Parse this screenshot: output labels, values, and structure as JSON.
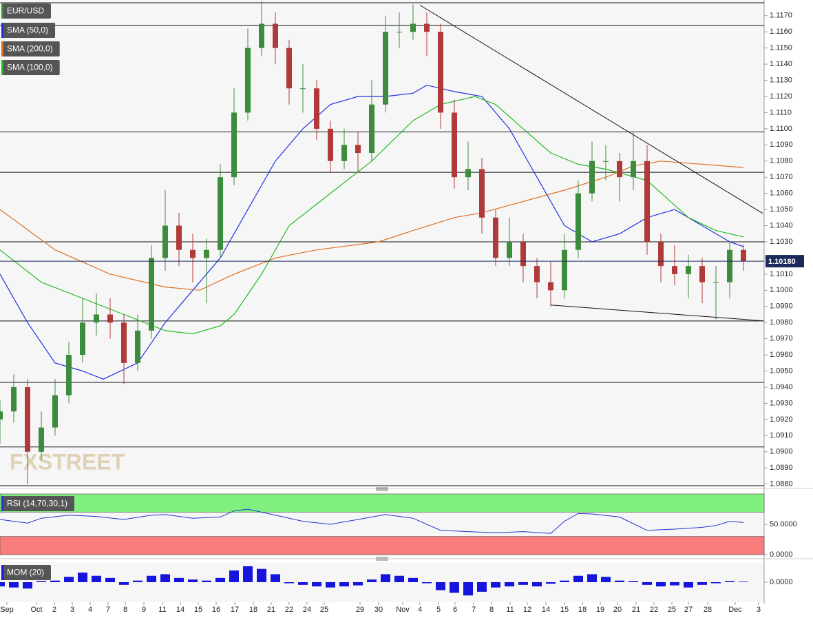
{
  "chart_data": [
    {
      "type": "candlestick",
      "name": "EUR/USD",
      "up_color": "#3d8b3d",
      "down_color": "#b03a3a",
      "x": [
        0,
        2,
        4,
        6,
        8,
        10,
        12,
        14,
        16,
        18,
        20,
        22,
        24,
        26,
        28,
        30,
        32,
        34,
        36,
        38,
        40,
        42,
        44,
        46,
        48,
        50,
        52,
        54,
        56,
        58,
        60,
        62,
        64,
        66,
        68,
        70,
        72,
        74,
        76,
        78,
        80,
        82,
        84,
        86,
        88,
        90,
        92,
        94,
        96,
        98,
        100,
        102,
        104,
        106,
        108
      ],
      "open": [
        1.092,
        1.0925,
        1.094,
        1.09,
        1.0915,
        1.0935,
        1.096,
        1.098,
        1.0985,
        1.098,
        1.0955,
        1.0975,
        1.102,
        1.104,
        1.1025,
        1.102,
        1.1025,
        1.107,
        1.111,
        1.115,
        1.1165,
        1.115,
        1.1125,
        1.1125,
        1.11,
        1.108,
        1.109,
        1.1085,
        1.1115,
        1.116,
        1.116,
        1.1165,
        1.116,
        1.111,
        1.107,
        1.1075,
        1.1045,
        1.102,
        1.103,
        1.1015,
        1.1005,
        1.1,
        1.1025,
        1.106,
        1.108,
        1.108,
        1.107,
        1.108,
        1.103,
        1.1015,
        1.101,
        1.1015,
        1.1005,
        1.1005,
        1.1025
      ],
      "high": [
        1.0932,
        1.0948,
        1.0945,
        1.0925,
        1.0945,
        1.0968,
        1.0995,
        1.0998,
        1.0995,
        1.0985,
        1.0985,
        1.1028,
        1.1062,
        1.1048,
        1.1035,
        1.1032,
        1.1078,
        1.1125,
        1.1162,
        1.1179,
        1.1172,
        1.1155,
        1.114,
        1.113,
        1.1105,
        1.11,
        1.1098,
        1.113,
        1.117,
        1.1172,
        1.1177,
        1.1172,
        1.1165,
        1.1118,
        1.1092,
        1.1082,
        1.105,
        1.1045,
        1.1035,
        1.102,
        1.1018,
        1.1035,
        1.1068,
        1.1092,
        1.109,
        1.1085,
        1.1098,
        1.109,
        1.1035,
        1.1028,
        1.1022,
        1.102,
        1.1015,
        1.103,
        1.1028
      ],
      "low": [
        1.0905,
        1.0918,
        1.088,
        1.0895,
        1.091,
        1.093,
        1.0955,
        1.0972,
        1.097,
        1.0942,
        1.095,
        1.097,
        1.1012,
        1.1015,
        1.1005,
        1.0992,
        1.102,
        1.1065,
        1.1105,
        1.1145,
        1.114,
        1.1115,
        1.111,
        1.1093,
        1.1073,
        1.1075,
        1.1073,
        1.108,
        1.111,
        1.115,
        1.1155,
        1.1145,
        1.11,
        1.1063,
        1.1062,
        1.1035,
        1.1015,
        1.1015,
        1.1005,
        1.0995,
        1.099,
        1.0995,
        1.102,
        1.1055,
        1.1068,
        1.1055,
        1.1062,
        1.1022,
        1.1005,
        1.1003,
        1.0995,
        1.0992,
        1.0982,
        1.0995,
        1.1012
      ],
      "close": [
        1.0925,
        1.094,
        1.09,
        1.0915,
        1.0935,
        1.096,
        1.098,
        1.0985,
        1.098,
        1.0955,
        1.0975,
        1.102,
        1.104,
        1.1025,
        1.102,
        1.1025,
        1.107,
        1.111,
        1.115,
        1.1165,
        1.115,
        1.1125,
        1.1125,
        1.11,
        1.108,
        1.109,
        1.1085,
        1.1115,
        1.116,
        1.116,
        1.1165,
        1.116,
        1.111,
        1.107,
        1.1075,
        1.1045,
        1.102,
        1.103,
        1.1015,
        1.1005,
        1.1,
        1.1025,
        1.106,
        1.108,
        1.108,
        1.107,
        1.108,
        1.103,
        1.1015,
        1.101,
        1.1015,
        1.1005,
        1.1005,
        1.1025,
        1.1018
      ],
      "series": [
        {
          "name": "SMA (50,0)",
          "color": "#2030e0",
          "x": [
            0,
            4,
            8,
            12,
            15,
            20,
            24,
            28,
            32,
            36,
            40,
            44,
            48,
            52,
            56,
            60,
            62,
            66,
            70,
            74,
            78,
            82,
            86,
            90,
            94,
            98,
            102,
            106,
            108
          ],
          "values": [
            1.101,
            1.098,
            1.0955,
            1.095,
            1.0945,
            1.0955,
            1.098,
            1.1,
            1.102,
            1.105,
            1.108,
            1.11,
            1.1115,
            1.112,
            1.112,
            1.1122,
            1.1127,
            1.1123,
            1.112,
            1.11,
            1.107,
            1.104,
            1.103,
            1.1035,
            1.1045,
            1.105,
            1.104,
            1.103,
            1.1027
          ]
        },
        {
          "name": "SMA (200,0)",
          "color": "#e07020",
          "x": [
            0,
            8,
            16,
            24,
            29,
            34,
            40,
            46,
            55,
            60,
            66,
            70,
            76,
            82,
            88,
            92,
            96,
            102,
            108
          ],
          "values": [
            1.105,
            1.1025,
            1.101,
            1.1002,
            1.1,
            1.101,
            1.102,
            1.1025,
            1.103,
            1.1037,
            1.1045,
            1.1048,
            1.1055,
            1.1062,
            1.107,
            1.1077,
            1.108,
            1.1078,
            1.1076
          ]
        },
        {
          "name": "SMA (100,0)",
          "color": "#22bb22",
          "x": [
            0,
            6,
            12,
            18,
            24,
            28,
            32,
            34,
            38,
            42,
            48,
            54,
            60,
            64,
            69,
            72,
            76,
            80,
            84,
            88,
            94,
            100,
            104,
            108
          ],
          "values": [
            1.1025,
            1.1005,
            1.0995,
            1.0985,
            1.0975,
            1.0973,
            1.0978,
            1.0985,
            1.101,
            1.104,
            1.106,
            1.108,
            1.1105,
            1.1115,
            1.112,
            1.1115,
            1.11,
            1.1085,
            1.1078,
            1.1075,
            1.1068,
            1.1045,
            1.1037,
            1.1033
          ]
        }
      ],
      "hlines": [
        1.1178,
        1.1164,
        1.1098,
        1.1073,
        1.103,
        1.0981,
        1.0943,
        1.0903,
        1.0879
      ],
      "trendlines": [
        {
          "x": [
            61,
            110.8
          ],
          "values": [
            1.11765,
            1.10476
          ]
        },
        {
          "x": [
            80,
            110.8
          ],
          "values": [
            1.09909,
            1.09811
          ]
        }
      ],
      "last_price": 1.1018,
      "last_price_label": "1.10180",
      "watermark": "FXSTREET",
      "xlim": [
        0,
        111
      ],
      "ylim": [
        1.0879,
        1.1178
      ],
      "yticks": [
        {
          "value": 1.088,
          "label": "1.0880"
        },
        {
          "value": 1.089,
          "label": "1.0890"
        },
        {
          "value": 1.09,
          "label": "1.0900"
        },
        {
          "value": 1.091,
          "label": "1.0910"
        },
        {
          "value": 1.092,
          "label": "1.0920"
        },
        {
          "value": 1.093,
          "label": "1.0930"
        },
        {
          "value": 1.094,
          "label": "1.0940"
        },
        {
          "value": 1.095,
          "label": "1.0950"
        },
        {
          "value": 1.096,
          "label": "1.0960"
        },
        {
          "value": 1.097,
          "label": "1.0970"
        },
        {
          "value": 1.098,
          "label": "1.0980"
        },
        {
          "value": 1.099,
          "label": "1.0990"
        },
        {
          "value": 1.1,
          "label": "1.1000"
        },
        {
          "value": 1.101,
          "label": "1.1010"
        },
        {
          "value": 1.102,
          "label": "1.1020"
        },
        {
          "value": 1.103,
          "label": "1.1030"
        },
        {
          "value": 1.104,
          "label": "1.1040"
        },
        {
          "value": 1.105,
          "label": "1.1050"
        },
        {
          "value": 1.106,
          "label": "1.1060"
        },
        {
          "value": 1.107,
          "label": "1.1070"
        },
        {
          "value": 1.108,
          "label": "1.1080"
        },
        {
          "value": 1.109,
          "label": "1.1090"
        },
        {
          "value": 1.11,
          "label": "1.1100"
        },
        {
          "value": 1.111,
          "label": "1.1110"
        },
        {
          "value": 1.112,
          "label": "1.1120"
        },
        {
          "value": 1.113,
          "label": "1.1130"
        },
        {
          "value": 1.114,
          "label": "1.1140"
        },
        {
          "value": 1.115,
          "label": "1.1150"
        },
        {
          "value": 1.116,
          "label": "1.1160"
        },
        {
          "value": 1.117,
          "label": "1.1170"
        }
      ]
    },
    {
      "type": "line",
      "name": "RSI (14,70,30,1)",
      "color": "#2233cc",
      "x": [
        0,
        4,
        6,
        10,
        14,
        18,
        22,
        24,
        28,
        32,
        34,
        36,
        40,
        44,
        48,
        52,
        56,
        60,
        64,
        68,
        72,
        76,
        80,
        82,
        84,
        86,
        90,
        94,
        98,
        102,
        104,
        106,
        108
      ],
      "values": [
        58,
        52,
        60,
        65,
        63,
        58,
        65,
        66,
        60,
        62,
        72,
        75,
        65,
        55,
        50,
        58,
        66,
        60,
        40,
        38,
        36,
        38,
        35,
        55,
        68,
        67,
        62,
        40,
        42,
        45,
        48,
        55,
        53
      ],
      "zones": [
        {
          "from": 70,
          "to": 100,
          "color": "#80f080"
        },
        {
          "from": 0,
          "to": 30,
          "color": "#f87c7c"
        }
      ],
      "xlim": [
        0,
        111
      ],
      "ylim": [
        0,
        100
      ],
      "yticks": [
        {
          "value": 50,
          "label": "50.0000"
        },
        {
          "value": 0,
          "label": "0.0000"
        }
      ]
    },
    {
      "type": "bar",
      "name": "MOM (20)",
      "color": "#1515dd",
      "x": [
        0,
        2,
        4,
        6,
        8,
        10,
        12,
        14,
        16,
        18,
        20,
        22,
        24,
        26,
        28,
        30,
        32,
        34,
        36,
        38,
        40,
        42,
        44,
        46,
        48,
        50,
        52,
        54,
        56,
        58,
        60,
        62,
        64,
        66,
        68,
        70,
        72,
        74,
        76,
        78,
        80,
        82,
        84,
        86,
        88,
        90,
        92,
        94,
        96,
        98,
        100,
        102,
        104,
        106,
        108
      ],
      "values": [
        -0.0008,
        -0.001,
        -0.0012,
        0.0002,
        0.0003,
        0.001,
        0.0018,
        0.0012,
        0.0008,
        -0.0005,
        0.0003,
        0.0012,
        0.0015,
        0.0008,
        0.0005,
        0.0003,
        0.0008,
        0.0022,
        0.003,
        0.0025,
        0.0015,
        -0.0002,
        -0.0005,
        -0.0008,
        -0.001,
        -0.0008,
        -0.0006,
        0.0005,
        0.0015,
        0.0012,
        0.0008,
        -0.0002,
        -0.0015,
        -0.002,
        -0.0025,
        -0.0018,
        -0.001,
        -0.0008,
        -0.0005,
        -0.0008,
        -0.0003,
        0.0003,
        0.0012,
        0.0015,
        0.001,
        0.0003,
        0.0002,
        -0.0005,
        -0.0008,
        -0.0006,
        -0.001,
        -0.0005,
        -0.0002,
        0.0002,
        0.0001
      ],
      "xlim": [
        0,
        111
      ],
      "ylim": [
        -0.0035,
        0.0035
      ],
      "yticks": [
        {
          "value": 0,
          "label": "0.0000"
        }
      ],
      "xticks": [
        {
          "value": 1,
          "label": "Sep"
        },
        {
          "value": 5.3,
          "label": "Oct"
        },
        {
          "value": 7.9,
          "label": "2"
        },
        {
          "value": 10.5,
          "label": "3"
        },
        {
          "value": 13.1,
          "label": "4"
        },
        {
          "value": 15.7,
          "label": "7"
        },
        {
          "value": 18.2,
          "label": "8"
        },
        {
          "value": 20.9,
          "label": "9"
        },
        {
          "value": 23.6,
          "label": "11"
        },
        {
          "value": 26.2,
          "label": "14"
        },
        {
          "value": 28.8,
          "label": "15"
        },
        {
          "value": 31.4,
          "label": "16"
        },
        {
          "value": 34.1,
          "label": "17"
        },
        {
          "value": 36.8,
          "label": "18"
        },
        {
          "value": 39.4,
          "label": "21"
        },
        {
          "value": 42.0,
          "label": "22"
        },
        {
          "value": 44.6,
          "label": "24"
        },
        {
          "value": 47.1,
          "label": "25"
        },
        {
          "value": 52.3,
          "label": "29"
        },
        {
          "value": 55.0,
          "label": "30"
        },
        {
          "value": 58.5,
          "label": "Nov"
        },
        {
          "value": 61.0,
          "label": "4"
        },
        {
          "value": 63.7,
          "label": "5"
        },
        {
          "value": 66.1,
          "label": "6"
        },
        {
          "value": 68.8,
          "label": "7"
        },
        {
          "value": 71.4,
          "label": "8"
        },
        {
          "value": 74.1,
          "label": "11"
        },
        {
          "value": 76.6,
          "label": "12"
        },
        {
          "value": 79.3,
          "label": "14"
        },
        {
          "value": 82.0,
          "label": "15"
        },
        {
          "value": 84.6,
          "label": "18"
        },
        {
          "value": 87.2,
          "label": "19"
        },
        {
          "value": 89.7,
          "label": "20"
        },
        {
          "value": 92.4,
          "label": "21"
        },
        {
          "value": 95.0,
          "label": "22"
        },
        {
          "value": 97.6,
          "label": "25"
        },
        {
          "value": 100.0,
          "label": "27"
        },
        {
          "value": 102.8,
          "label": "28"
        },
        {
          "value": 106.8,
          "label": "Dec"
        },
        {
          "value": 110.2,
          "label": "3"
        }
      ]
    }
  ]
}
